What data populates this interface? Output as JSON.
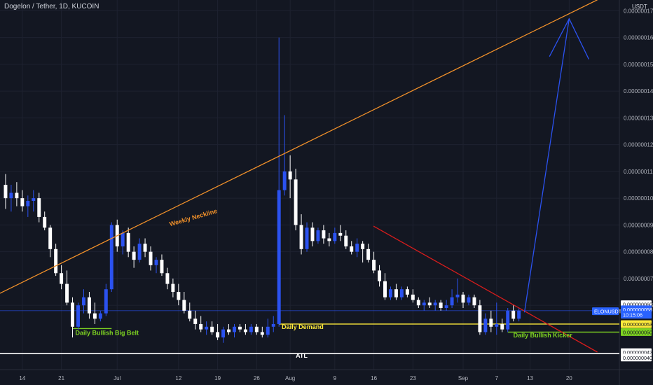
{
  "header": {
    "title": "Dogelon / Tether, 1D, KUCOIN"
  },
  "price_scale": {
    "unit_label": "USDT"
  },
  "colors": {
    "background": "#131722",
    "up_candle": "#2b52f0",
    "down_candle": "#ffffff",
    "weekly_neckline": "#f0902a",
    "downtrend": "#d81c1c",
    "projection_arrow": "#2b52f0",
    "support_yellow": "#ffeb3b",
    "support_green": "#4caf50",
    "atl_line": "#ffffff",
    "label_green": "#7ed321",
    "label_yellow": "#ffeb3b",
    "price_tag_blue": "#2962ff",
    "current_line": "#2b52f0"
  },
  "chart_data": {
    "type": "candlestick",
    "title": "Dogelon / Tether, 1D, KUCOIN",
    "y_unit": "USDT",
    "ylim": [
      3.6e-08,
      1.74e-07
    ],
    "y_ticks": [
      6e-08,
      7e-08,
      8e-08,
      9e-08,
      1e-07,
      1.1e-07,
      1.2e-07,
      1.3e-07,
      1.4e-07,
      1.5e-07,
      1.6e-07,
      1.7e-07
    ],
    "y_tick_labels": [
      "0.000000060",
      "0.000000070",
      "0.000000080",
      "0.000000090",
      "0.000000100",
      "0.000000110",
      "0.000000120",
      "0.000000130",
      "0.000000140",
      "0.000000150",
      "0.000000160",
      "0.000000170"
    ],
    "x_ticks": [
      {
        "label": "14",
        "day": 0
      },
      {
        "label": "21",
        "day": 7
      },
      {
        "label": "Jul",
        "day": 17
      },
      {
        "label": "12",
        "day": 28
      },
      {
        "label": "19",
        "day": 35
      },
      {
        "label": "26",
        "day": 42
      },
      {
        "label": "Aug",
        "day": 48
      },
      {
        "label": "9",
        "day": 56
      },
      {
        "label": "16",
        "day": 63
      },
      {
        "label": "23",
        "day": 70
      },
      {
        "label": "Sep",
        "day": 79
      },
      {
        "label": "7",
        "day": 85
      },
      {
        "label": "13",
        "day": 91
      },
      {
        "label": "20",
        "day": 98
      }
    ],
    "x_day_range": [
      -4,
      107
    ],
    "candles": [
      {
        "day": -3,
        "o": 1.05e-07,
        "h": 1.09e-07,
        "l": 9.6e-08,
        "c": 1e-07
      },
      {
        "day": -2,
        "o": 1e-07,
        "h": 1.05e-07,
        "l": 9.5e-08,
        "c": 1.02e-07
      },
      {
        "day": -1,
        "o": 1.02e-07,
        "h": 1.06e-07,
        "l": 9.7e-08,
        "c": 1e-07
      },
      {
        "day": 0,
        "o": 1e-07,
        "h": 1.03e-07,
        "l": 9.5e-08,
        "c": 9.7e-08
      },
      {
        "day": 1,
        "o": 9.7e-08,
        "h": 1.01e-07,
        "l": 9.3e-08,
        "c": 9.9e-08
      },
      {
        "day": 2,
        "o": 9.9e-08,
        "h": 1.03e-07,
        "l": 9.5e-08,
        "c": 1e-07
      },
      {
        "day": 3,
        "o": 1e-07,
        "h": 1.02e-07,
        "l": 9.1e-08,
        "c": 9.3e-08
      },
      {
        "day": 4,
        "o": 9.3e-08,
        "h": 9.5e-08,
        "l": 8.8e-08,
        "c": 8.9e-08
      },
      {
        "day": 5,
        "o": 8.9e-08,
        "h": 9e-08,
        "l": 7.8e-08,
        "c": 8.1e-08
      },
      {
        "day": 6,
        "o": 8.1e-08,
        "h": 8.3e-08,
        "l": 7.1e-08,
        "c": 7.2e-08
      },
      {
        "day": 7,
        "o": 7.2e-08,
        "h": 7.5e-08,
        "l": 6.6e-08,
        "c": 6.8e-08
      },
      {
        "day": 8,
        "o": 6.8e-08,
        "h": 7.3e-08,
        "l": 6e-08,
        "c": 6.1e-08
      },
      {
        "day": 9,
        "o": 6.1e-08,
        "h": 6.3e-08,
        "l": 4.8e-08,
        "c": 5.2e-08
      },
      {
        "day": 10,
        "o": 5.2e-08,
        "h": 6.1e-08,
        "l": 5.1e-08,
        "c": 6e-08
      },
      {
        "day": 11,
        "o": 6e-08,
        "h": 6.6e-08,
        "l": 5.7e-08,
        "c": 6.3e-08
      },
      {
        "day": 12,
        "o": 6.3e-08,
        "h": 6.5e-08,
        "l": 5.5e-08,
        "c": 5.7e-08
      },
      {
        "day": 13,
        "o": 5.7e-08,
        "h": 6.1e-08,
        "l": 5.3e-08,
        "c": 5.5e-08
      },
      {
        "day": 14,
        "o": 5.5e-08,
        "h": 5.8e-08,
        "l": 5.4e-08,
        "c": 5.7e-08
      },
      {
        "day": 15,
        "o": 5.7e-08,
        "h": 6.8e-08,
        "l": 5.6e-08,
        "c": 6.6e-08
      },
      {
        "day": 16,
        "o": 6.6e-08,
        "h": 9.1e-08,
        "l": 6.5e-08,
        "c": 9e-08
      },
      {
        "day": 17,
        "o": 9e-08,
        "h": 9.2e-08,
        "l": 8e-08,
        "c": 8.2e-08
      },
      {
        "day": 18,
        "o": 8.2e-08,
        "h": 8.8e-08,
        "l": 7.9e-08,
        "c": 8.7e-08
      },
      {
        "day": 19,
        "o": 8.7e-08,
        "h": 8.9e-08,
        "l": 7.8e-08,
        "c": 8e-08
      },
      {
        "day": 20,
        "o": 8e-08,
        "h": 8.2e-08,
        "l": 7.4e-08,
        "c": 7.7e-08
      },
      {
        "day": 21,
        "o": 7.7e-08,
        "h": 8.5e-08,
        "l": 7.6e-08,
        "c": 8.3e-08
      },
      {
        "day": 22,
        "o": 8.3e-08,
        "h": 8.5e-08,
        "l": 7.8e-08,
        "c": 8e-08
      },
      {
        "day": 23,
        "o": 8e-08,
        "h": 8.2e-08,
        "l": 7.3e-08,
        "c": 7.5e-08
      },
      {
        "day": 24,
        "o": 7.5e-08,
        "h": 7.8e-08,
        "l": 7.2e-08,
        "c": 7.7e-08
      },
      {
        "day": 25,
        "o": 7.7e-08,
        "h": 7.9e-08,
        "l": 7.1e-08,
        "c": 7.2e-08
      },
      {
        "day": 26,
        "o": 7.2e-08,
        "h": 7.4e-08,
        "l": 6.6e-08,
        "c": 6.8e-08
      },
      {
        "day": 27,
        "o": 6.8e-08,
        "h": 7e-08,
        "l": 6.3e-08,
        "c": 6.5e-08
      },
      {
        "day": 28,
        "o": 6.5e-08,
        "h": 6.8e-08,
        "l": 6e-08,
        "c": 6.2e-08
      },
      {
        "day": 29,
        "o": 6.2e-08,
        "h": 6.5e-08,
        "l": 5.7e-08,
        "c": 5.8e-08
      },
      {
        "day": 30,
        "o": 5.8e-08,
        "h": 6.1e-08,
        "l": 5.4e-08,
        "c": 5.5e-08
      },
      {
        "day": 31,
        "o": 5.5e-08,
        "h": 5.8e-08,
        "l": 5.1e-08,
        "c": 5.3e-08
      },
      {
        "day": 32,
        "o": 5.3e-08,
        "h": 5.6e-08,
        "l": 5e-08,
        "c": 5.1e-08
      },
      {
        "day": 33,
        "o": 5.1e-08,
        "h": 5.4e-08,
        "l": 4.9e-08,
        "c": 5.2e-08
      },
      {
        "day": 34,
        "o": 5.2e-08,
        "h": 5.4e-08,
        "l": 4.9e-08,
        "c": 5e-08
      },
      {
        "day": 35,
        "o": 5e-08,
        "h": 5.3e-08,
        "l": 4.7e-08,
        "c": 4.8e-08
      },
      {
        "day": 36,
        "o": 4.8e-08,
        "h": 5.2e-08,
        "l": 4.6e-08,
        "c": 5.1e-08
      },
      {
        "day": 37,
        "o": 5.1e-08,
        "h": 5.3e-08,
        "l": 4.9e-08,
        "c": 5e-08
      },
      {
        "day": 38,
        "o": 5e-08,
        "h": 5.3e-08,
        "l": 4.8e-08,
        "c": 5.2e-08
      },
      {
        "day": 39,
        "o": 5.2e-08,
        "h": 5.3e-08,
        "l": 5e-08,
        "c": 5.1e-08
      },
      {
        "day": 40,
        "o": 5.1e-08,
        "h": 5.3e-08,
        "l": 4.9e-08,
        "c": 5e-08
      },
      {
        "day": 41,
        "o": 5e-08,
        "h": 5.3e-08,
        "l": 4.9e-08,
        "c": 5.2e-08
      },
      {
        "day": 42,
        "o": 5.2e-08,
        "h": 5.3e-08,
        "l": 4.9e-08,
        "c": 5e-08
      },
      {
        "day": 43,
        "o": 5e-08,
        "h": 5.2e-08,
        "l": 4.8e-08,
        "c": 4.9e-08
      },
      {
        "day": 44,
        "o": 4.9e-08,
        "h": 5.5e-08,
        "l": 4.8e-08,
        "c": 5.2e-08
      },
      {
        "day": 45,
        "o": 5.2e-08,
        "h": 5.6e-08,
        "l": 5e-08,
        "c": 5.3e-08
      },
      {
        "day": 46,
        "o": 5.3e-08,
        "h": 1.6e-07,
        "l": 5.2e-08,
        "c": 1.03e-07
      },
      {
        "day": 47,
        "o": 1.03e-07,
        "h": 1.31e-07,
        "l": 1.01e-07,
        "c": 1.1e-07
      },
      {
        "day": 48,
        "o": 1.1e-07,
        "h": 1.16e-07,
        "l": 1e-07,
        "c": 1.07e-07
      },
      {
        "day": 49,
        "o": 1.07e-07,
        "h": 1.11e-07,
        "l": 8.8e-08,
        "c": 9e-08
      },
      {
        "day": 50,
        "o": 9e-08,
        "h": 9.4e-08,
        "l": 7.9e-08,
        "c": 8.1e-08
      },
      {
        "day": 51,
        "o": 8.1e-08,
        "h": 9.1e-08,
        "l": 8e-08,
        "c": 8.9e-08
      },
      {
        "day": 52,
        "o": 8.9e-08,
        "h": 9.1e-08,
        "l": 8.2e-08,
        "c": 8.4e-08
      },
      {
        "day": 53,
        "o": 8.4e-08,
        "h": 8.9e-08,
        "l": 8.3e-08,
        "c": 8.8e-08
      },
      {
        "day": 54,
        "o": 8.8e-08,
        "h": 9e-08,
        "l": 8.3e-08,
        "c": 8.5e-08
      },
      {
        "day": 55,
        "o": 8.5e-08,
        "h": 8.7e-08,
        "l": 8.2e-08,
        "c": 8.4e-08
      },
      {
        "day": 56,
        "o": 8.4e-08,
        "h": 8.9e-08,
        "l": 8.3e-08,
        "c": 8.7e-08
      },
      {
        "day": 57,
        "o": 8.7e-08,
        "h": 9e-08,
        "l": 8.4e-08,
        "c": 8.6e-08
      },
      {
        "day": 58,
        "o": 8.6e-08,
        "h": 8.8e-08,
        "l": 8.1e-08,
        "c": 8.2e-08
      },
      {
        "day": 59,
        "o": 8.2e-08,
        "h": 8.4e-08,
        "l": 7.9e-08,
        "c": 8e-08
      },
      {
        "day": 60,
        "o": 8e-08,
        "h": 8.5e-08,
        "l": 7.8e-08,
        "c": 8.3e-08
      },
      {
        "day": 61,
        "o": 8.3e-08,
        "h": 8.4e-08,
        "l": 7.6e-08,
        "c": 8.1e-08
      },
      {
        "day": 62,
        "o": 8.1e-08,
        "h": 8.3e-08,
        "l": 7.6e-08,
        "c": 7.7e-08
      },
      {
        "day": 63,
        "o": 7.7e-08,
        "h": 8e-08,
        "l": 7.2e-08,
        "c": 7.3e-08
      },
      {
        "day": 64,
        "o": 7.3e-08,
        "h": 7.5e-08,
        "l": 6.7e-08,
        "c": 6.9e-08
      },
      {
        "day": 65,
        "o": 6.9e-08,
        "h": 7.2e-08,
        "l": 6.2e-08,
        "c": 6.3e-08
      },
      {
        "day": 66,
        "o": 6.3e-08,
        "h": 6.7e-08,
        "l": 6.2e-08,
        "c": 6.6e-08
      },
      {
        "day": 67,
        "o": 6.6e-08,
        "h": 6.8e-08,
        "l": 6.2e-08,
        "c": 6.3e-08
      },
      {
        "day": 68,
        "o": 6.3e-08,
        "h": 6.7e-08,
        "l": 6.2e-08,
        "c": 6.6e-08
      },
      {
        "day": 69,
        "o": 6.6e-08,
        "h": 6.7e-08,
        "l": 6.3e-08,
        "c": 6.4e-08
      },
      {
        "day": 70,
        "o": 6.4e-08,
        "h": 6.6e-08,
        "l": 6.1e-08,
        "c": 6.2e-08
      },
      {
        "day": 71,
        "o": 6.2e-08,
        "h": 6.3e-08,
        "l": 5.9e-08,
        "c": 6e-08
      },
      {
        "day": 72,
        "o": 6e-08,
        "h": 6.2e-08,
        "l": 5.8e-08,
        "c": 6.1e-08
      },
      {
        "day": 73,
        "o": 6.1e-08,
        "h": 6.3e-08,
        "l": 5.9e-08,
        "c": 6e-08
      },
      {
        "day": 74,
        "o": 6e-08,
        "h": 6.2e-08,
        "l": 5.8e-08,
        "c": 6.1e-08
      },
      {
        "day": 75,
        "o": 6.1e-08,
        "h": 6.2e-08,
        "l": 5.8e-08,
        "c": 5.9e-08
      },
      {
        "day": 76,
        "o": 5.9e-08,
        "h": 6.2e-08,
        "l": 5.8e-08,
        "c": 6e-08
      },
      {
        "day": 77,
        "o": 6e-08,
        "h": 6.6e-08,
        "l": 5.9e-08,
        "c": 6.3e-08
      },
      {
        "day": 78,
        "o": 6.3e-08,
        "h": 7e-08,
        "l": 6.1e-08,
        "c": 6.4e-08
      },
      {
        "day": 79,
        "o": 6.4e-08,
        "h": 6.5e-08,
        "l": 5.9e-08,
        "c": 6.1e-08
      },
      {
        "day": 80,
        "o": 6.1e-08,
        "h": 6.4e-08,
        "l": 6e-08,
        "c": 6.3e-08
      },
      {
        "day": 81,
        "o": 6.3e-08,
        "h": 6.4e-08,
        "l": 5.9e-08,
        "c": 6e-08
      },
      {
        "day": 82,
        "o": 6e-08,
        "h": 6.2e-08,
        "l": 4.9e-08,
        "c": 5e-08
      },
      {
        "day": 83,
        "o": 5e-08,
        "h": 5.7e-08,
        "l": 4.9e-08,
        "c": 5.5e-08
      },
      {
        "day": 84,
        "o": 5.5e-08,
        "h": 5.8e-08,
        "l": 5e-08,
        "c": 5.2e-08
      },
      {
        "day": 85,
        "o": 5.2e-08,
        "h": 6.1e-08,
        "l": 4.9e-08,
        "c": 5.3e-08
      },
      {
        "day": 86,
        "o": 5.3e-08,
        "h": 5.5e-08,
        "l": 5e-08,
        "c": 5.1e-08
      },
      {
        "day": 87,
        "o": 5.1e-08,
        "h": 5.9e-08,
        "l": 5e-08,
        "c": 5.8e-08
      },
      {
        "day": 88,
        "o": 5.8e-08,
        "h": 6e-08,
        "l": 5.4e-08,
        "c": 5.5e-08
      },
      {
        "day": 89,
        "o": 5.5e-08,
        "h": 5.9e-08,
        "l": 5.4e-08,
        "c": 5.8e-08
      }
    ],
    "lines": [
      {
        "name": "weekly_neckline",
        "color": "#f0902a",
        "x1": -4,
        "y1": 6.45e-08,
        "x2": 103,
        "y2": 1.74e-07
      },
      {
        "name": "downtrend",
        "color": "#d81c1c",
        "x1": 63,
        "y1": 8.95e-08,
        "x2": 103,
        "y2": 4.26e-08
      },
      {
        "name": "projection_up",
        "color": "#2b52f0",
        "x1": 90,
        "y1": 5.75e-08,
        "x2": 98,
        "y2": 1.67e-07
      },
      {
        "name": "arrow_left_wing",
        "color": "#2b52f0",
        "x1": 98,
        "y1": 1.67e-07,
        "x2": 94.5,
        "y2": 1.53e-07
      },
      {
        "name": "arrow_right_wing",
        "color": "#2b52f0",
        "x1": 98,
        "y1": 1.67e-07,
        "x2": 101.5,
        "y2": 1.52e-07
      }
    ],
    "horizontal_levels": [
      {
        "name": "daily_bullish_big_belt",
        "color": "#7ed321",
        "value": 5.13e-08,
        "from_day": 9,
        "to_day": 16
      },
      {
        "name": "daily_demand",
        "color": "#ffeb3b",
        "value": 5.3e-08,
        "from_day": 46,
        "to_day": 107
      },
      {
        "name": "daily_bullish_kicker",
        "color": "#7ed321",
        "value": 5e-08,
        "from_day": 87,
        "to_day": 107
      },
      {
        "name": "atl",
        "color": "#ffffff",
        "value": 4.2e-08,
        "from_day": -4,
        "to_day": 107
      },
      {
        "name": "current_price",
        "color": "#2b52f0",
        "value": 5.8e-08,
        "from_day": -4,
        "to_day": 107
      }
    ],
    "annotations": [
      {
        "text": "Weekly Neckline",
        "color": "#f0902a",
        "day": 26.5,
        "value": 8.95e-08,
        "rotate": -16,
        "bold": true
      },
      {
        "text": "Daily Bullish Big Belt",
        "color": "#7ed321",
        "day": 9.5,
        "value": 4.9e-08,
        "rotate": 0,
        "bold": true
      },
      {
        "text": "Daily Demand",
        "color": "#ffeb3b",
        "day": 46.5,
        "value": 5.12e-08,
        "rotate": 0,
        "bold": true
      },
      {
        "text": "Daily Bullish Kicker",
        "color": "#7ed321",
        "day": 88,
        "value": 4.8e-08,
        "rotate": 0,
        "bold": true
      },
      {
        "text": "ATL",
        "color": "#ffffff",
        "day": 49,
        "value": 4.05e-08,
        "rotate": 0,
        "bold": true
      }
    ],
    "price_tags": [
      {
        "label": "ELONUSDT",
        "value": 5.78e-08,
        "bg": "#2962ff",
        "fg": "#ffffff",
        "position": "left-of-scale"
      },
      {
        "label": "0.000000060",
        "value": 6.04e-08,
        "bg": "#ffffff",
        "fg": "#131722",
        "position": "scale"
      },
      {
        "label": "0.000000058",
        "value": 5.85e-08,
        "bg": "#2962ff",
        "fg": "#ffffff",
        "position": "scale"
      },
      {
        "label": "10:15:06",
        "value": 5.65e-08,
        "bg": "#2962ff",
        "fg": "#ffffff",
        "position": "scale"
      },
      {
        "label": "0.000000053",
        "value": 5.3e-08,
        "bg": "#ffeb3b",
        "fg": "#131722",
        "position": "scale"
      },
      {
        "label": "0.000000050",
        "value": 5e-08,
        "bg": "#7ed321",
        "fg": "#131722",
        "position": "scale"
      },
      {
        "label": "0.000000042",
        "value": 4.25e-08,
        "bg": "#ffffff",
        "fg": "#131722",
        "position": "scale"
      },
      {
        "label": "0.000000040",
        "value": 4.05e-08,
        "bg": "#ffffff",
        "fg": "#131722",
        "position": "scale"
      }
    ]
  }
}
